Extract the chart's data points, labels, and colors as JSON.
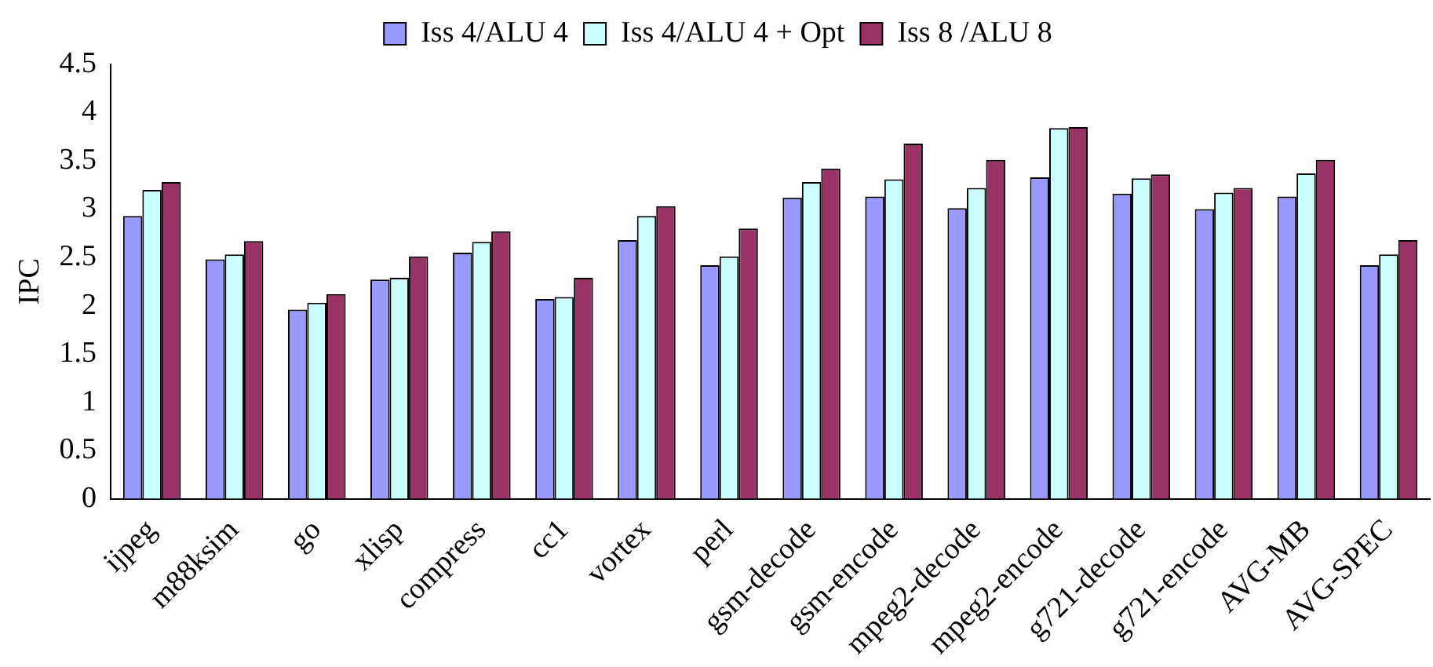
{
  "chart_data": {
    "type": "bar",
    "ylabel": "IPC",
    "categories": [
      "ijpeg",
      "m88ksim",
      "go",
      "xlisp",
      "compress",
      "cc1",
      "vortex",
      "perl",
      "gsm-decode",
      "gsm-encode",
      "mpeg2-decode",
      "mpeg2-encode",
      "g721-decode",
      "g721-encode",
      "AVG-MB",
      "AVG-SPEC"
    ],
    "series": [
      {
        "name": "Iss 4/ALU 4",
        "color": "#9999ff",
        "values": [
          2.93,
          2.48,
          1.96,
          2.27,
          2.55,
          2.07,
          2.68,
          2.42,
          3.12,
          3.13,
          3.01,
          3.33,
          3.16,
          3.0,
          3.13,
          2.42
        ]
      },
      {
        "name": "Iss 4/ALU 4 + Opt",
        "color": "#ccffff",
        "values": [
          3.2,
          2.53,
          2.03,
          2.29,
          2.66,
          2.09,
          2.93,
          2.51,
          3.28,
          3.31,
          3.22,
          3.84,
          3.32,
          3.17,
          3.37,
          2.53
        ]
      },
      {
        "name": "Iss 8 /ALU 8",
        "color": "#993366",
        "values": [
          3.28,
          2.67,
          2.12,
          2.51,
          2.77,
          2.29,
          3.03,
          2.8,
          3.42,
          3.68,
          3.51,
          3.85,
          3.36,
          3.22,
          3.51,
          2.68
        ]
      }
    ],
    "ylim": [
      0,
      4.5
    ],
    "yticks": [
      0,
      0.5,
      1,
      1.5,
      2,
      2.5,
      3,
      3.5,
      4,
      4.5
    ],
    "grid": false,
    "legend": "top"
  }
}
